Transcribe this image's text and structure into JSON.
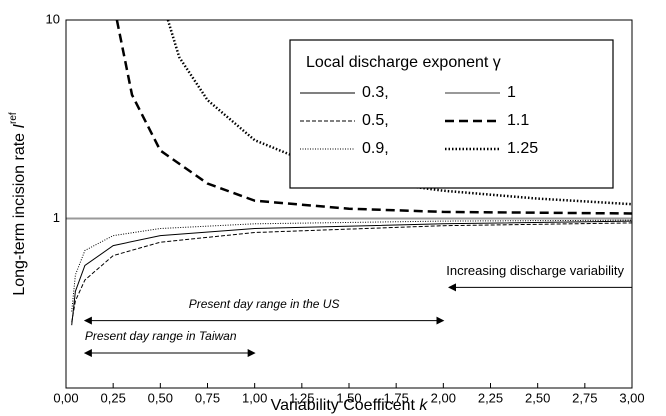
{
  "chart_data": {
    "type": "line",
    "xlabel": "Variability Coefficent ",
    "xlabel_symbol": "k",
    "ylabel": "Long-term incision rate ",
    "ylabel_symbol": "I",
    "ylabel_sup": "ref",
    "xlim": [
      0,
      3
    ],
    "ylim": [
      0.14,
      10
    ],
    "yscale": "log",
    "xticks": [
      {
        "value": 0,
        "label": "0,00"
      },
      {
        "value": 0.25,
        "label": "0,25"
      },
      {
        "value": 0.5,
        "label": "0,50"
      },
      {
        "value": 0.75,
        "label": "0,75"
      },
      {
        "value": 1,
        "label": "1,00"
      },
      {
        "value": 1.25,
        "label": "1,25"
      },
      {
        "value": 1.5,
        "label": "1,50"
      },
      {
        "value": 1.75,
        "label": "1,75"
      },
      {
        "value": 2,
        "label": "2,00"
      },
      {
        "value": 2.25,
        "label": "2,25"
      },
      {
        "value": 2.5,
        "label": "2,50"
      },
      {
        "value": 2.75,
        "label": "2,75"
      },
      {
        "value": 3,
        "label": "3,00"
      }
    ],
    "yticks": [
      1,
      10
    ],
    "legend_title": "Local discharge exponent γ",
    "legend_position": "upper right",
    "series": [
      {
        "name": "0.3,",
        "color": "#000000",
        "width": 1,
        "dash": "",
        "x": [
          0.03,
          0.05,
          0.1,
          0.25,
          0.5,
          1,
          2,
          3
        ],
        "values": [
          0.29,
          0.43,
          0.58,
          0.73,
          0.82,
          0.89,
          0.94,
          0.97
        ]
      },
      {
        "name": "0.5,",
        "color": "#000000",
        "width": 1,
        "dash": "4 2",
        "x": [
          0.03,
          0.05,
          0.1,
          0.25,
          0.5,
          1,
          2,
          3
        ],
        "values": [
          0.3,
          0.385,
          0.49,
          0.65,
          0.76,
          0.85,
          0.92,
          0.95
        ]
      },
      {
        "name": "0.9,",
        "color": "#000000",
        "width": 1,
        "dash": "1 1.5",
        "x": [
          0.03,
          0.05,
          0.1,
          0.25,
          0.5,
          1,
          2,
          3
        ],
        "values": [
          0.34,
          0.52,
          0.69,
          0.82,
          0.89,
          0.94,
          0.97,
          0.98
        ]
      },
      {
        "name": "1",
        "color": "#999999",
        "width": 2,
        "dash": "",
        "x": [
          0,
          3
        ],
        "values": [
          1,
          1
        ]
      },
      {
        "name": "1.1",
        "color": "#000000",
        "width": 2.5,
        "dash": "9 5",
        "x": [
          0.27,
          0.35,
          0.5,
          0.75,
          1,
          1.5,
          2,
          3
        ],
        "values": [
          10,
          4.2,
          2.2,
          1.5,
          1.23,
          1.12,
          1.08,
          1.06
        ]
      },
      {
        "name": "1.25",
        "color": "#000000",
        "width": 2.5,
        "dash": "1.5 2",
        "x": [
          0.54,
          0.6,
          0.75,
          1,
          1.5,
          2,
          2.5,
          3
        ],
        "values": [
          10,
          6.5,
          3.95,
          2.48,
          1.59,
          1.38,
          1.26,
          1.18
        ]
      }
    ],
    "annotations": [
      {
        "text": "Increasing discharge variability",
        "x": [
          3,
          2.03
        ],
        "y": 0.45,
        "arrow": "end"
      },
      {
        "text": "Present day range in the US",
        "x": [
          0.1,
          2.0
        ],
        "y": 0.306,
        "arrow": "both"
      },
      {
        "text": "Present day range in Taiwan",
        "x": [
          0.1,
          1.0
        ],
        "y": 0.21,
        "arrow": "both"
      }
    ]
  }
}
